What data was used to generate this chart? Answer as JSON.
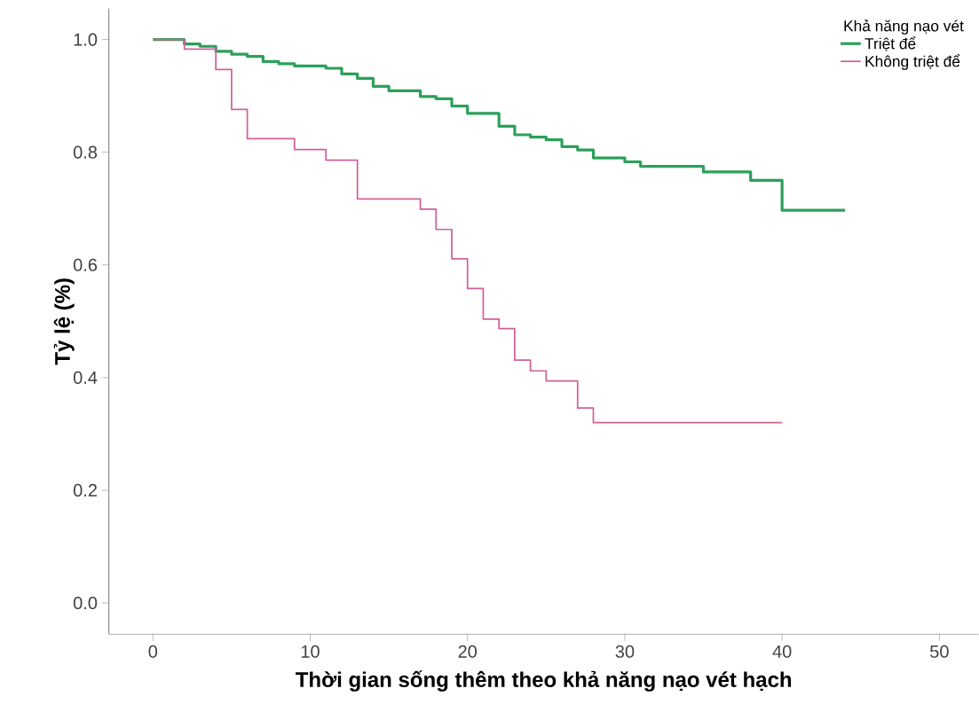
{
  "chart_data": {
    "type": "step",
    "xlabel": "Thời gian sống thêm theo khả năng nạo vét hạch",
    "ylabel": "Tỷ lệ (%)",
    "legend_title": "Khả năng nạo vét",
    "legend": "top right",
    "xlim": [
      -2.8,
      52.5
    ],
    "ylim": [
      -0.055,
      1.055
    ],
    "xticks": [
      0,
      10,
      20,
      30,
      40,
      50
    ],
    "yticks": [
      {
        "value": 0,
        "label": "0.0"
      },
      {
        "value": 0.2,
        "label": "0.2"
      },
      {
        "value": 0.4,
        "label": "0.4"
      },
      {
        "value": 0.6,
        "label": "0.6"
      },
      {
        "value": 0.8,
        "label": "0.8"
      },
      {
        "value": 1,
        "label": "1.0"
      }
    ],
    "grid": false,
    "series": [
      {
        "name": "Triệt để",
        "color": "#2ca05a",
        "x": [
          0,
          2,
          3,
          4,
          5,
          6,
          7,
          8,
          9,
          11,
          12,
          13,
          14,
          15,
          17,
          18,
          19,
          20,
          22,
          23,
          24,
          25,
          26,
          27,
          28,
          30,
          31,
          35,
          38,
          40,
          44
        ],
        "values": [
          1,
          0.992,
          0.988,
          0.979,
          0.974,
          0.97,
          0.961,
          0.957,
          0.953,
          0.949,
          0.939,
          0.931,
          0.917,
          0.909,
          0.899,
          0.895,
          0.882,
          0.869,
          0.846,
          0.831,
          0.827,
          0.822,
          0.81,
          0.804,
          0.79,
          0.783,
          0.775,
          0.765,
          0.75,
          0.697,
          0.697
        ]
      },
      {
        "name": "Không triệt để",
        "color": "#d0609a",
        "x": [
          0,
          2,
          4,
          5,
          6,
          9,
          11,
          13,
          17,
          18,
          19,
          20,
          21,
          22,
          23,
          24,
          25,
          27,
          28,
          40
        ],
        "values": [
          1,
          0.983,
          0.947,
          0.876,
          0.824,
          0.805,
          0.786,
          0.717,
          0.699,
          0.663,
          0.611,
          0.558,
          0.504,
          0.487,
          0.431,
          0.412,
          0.394,
          0.346,
          0.32,
          0.32
        ]
      }
    ]
  }
}
